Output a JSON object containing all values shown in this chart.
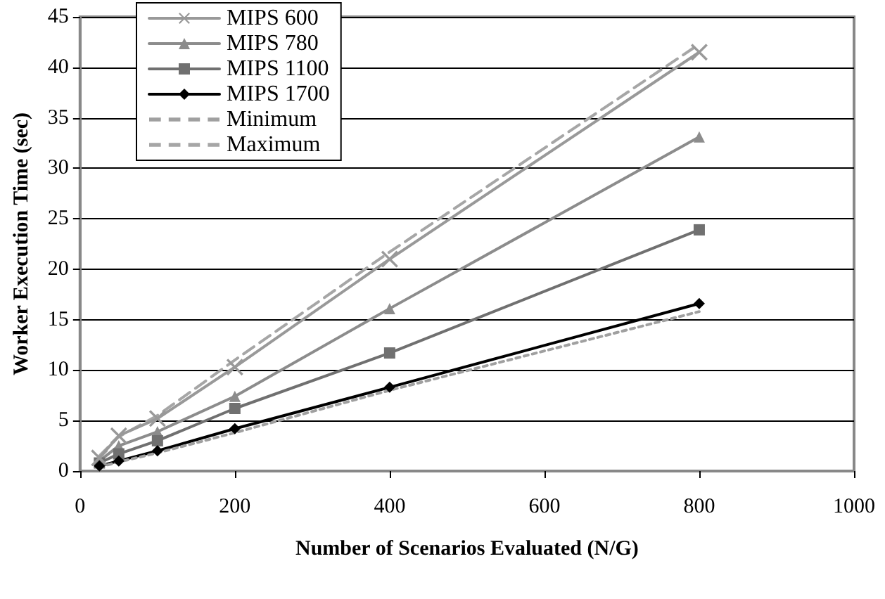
{
  "chart_data": {
    "type": "line",
    "xlabel": "Number of Scenarios Evaluated (N/G)",
    "ylabel": "Worker Execution Time (sec)",
    "x": [
      25,
      50,
      100,
      200,
      400,
      800
    ],
    "xlim": [
      0,
      1000
    ],
    "xticks": [
      0,
      200,
      400,
      600,
      800,
      1000
    ],
    "ylim": [
      0,
      45
    ],
    "yticks": [
      0,
      5,
      10,
      15,
      20,
      25,
      30,
      35,
      40,
      45
    ],
    "grid": "y",
    "legend": "top left",
    "series": [
      {
        "name": "MIPS 600",
        "color": "#999999",
        "marker": "cross",
        "line_style": "solid",
        "values": [
          1.3,
          3.5,
          5.2,
          10.3,
          21,
          41.5
        ]
      },
      {
        "name": "MIPS 780",
        "color": "#8c8c8c",
        "marker": "triangle",
        "line_style": "solid",
        "values": [
          1.0,
          2.5,
          3.9,
          7.4,
          16.1,
          33.1
        ]
      },
      {
        "name": "MIPS 1100",
        "color": "#707070",
        "marker": "square",
        "line_style": "solid",
        "values": [
          0.8,
          1.7,
          3.0,
          6.2,
          11.7,
          23.9
        ]
      },
      {
        "name": "MIPS 1700",
        "color": "#000000",
        "marker": "diamond",
        "line_style": "solid",
        "values": [
          0.5,
          1.0,
          2.0,
          4.2,
          8.3,
          16.6
        ]
      },
      {
        "name": "Minimum",
        "color": "#a0a0a0",
        "marker": "none",
        "line_style": "dotted",
        "values": [
          0.4,
          0.9,
          1.8,
          3.8,
          8.0,
          15.8
        ]
      },
      {
        "name": "Maximum",
        "color": "#a6a6a6",
        "marker": "none",
        "line_style": "dashed",
        "values": [
          1.5,
          3.4,
          5.5,
          11.0,
          21.7,
          42.3
        ]
      }
    ]
  }
}
